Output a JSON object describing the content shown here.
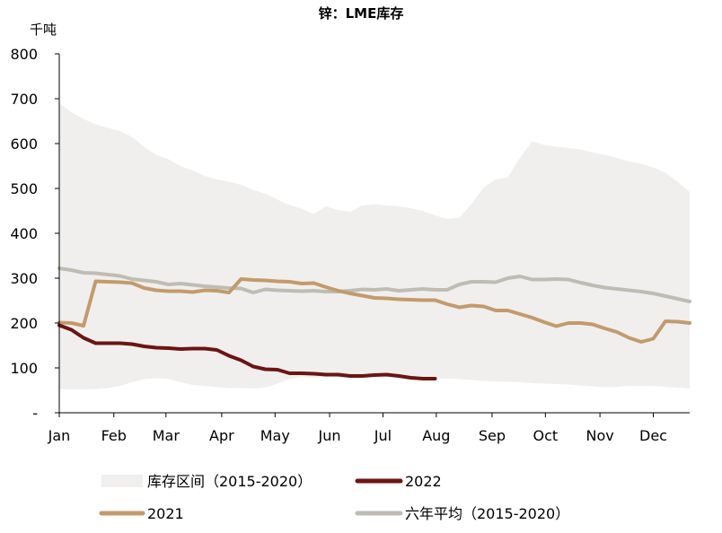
{
  "chart_data": {
    "type": "line",
    "title": "锌：LME库存",
    "ylabel": "千吨",
    "ylim": [
      0,
      800
    ],
    "yticks": [
      {
        "v": 0,
        "label": "-"
      },
      {
        "v": 100,
        "label": "100"
      },
      {
        "v": 200,
        "label": "200"
      },
      {
        "v": 300,
        "label": "300"
      },
      {
        "v": 400,
        "label": "400"
      },
      {
        "v": 500,
        "label": "500"
      },
      {
        "v": 600,
        "label": "600"
      },
      {
        "v": 700,
        "label": "700"
      },
      {
        "v": 800,
        "label": "800"
      }
    ],
    "xlim": [
      1,
      53
    ],
    "xticks": [
      {
        "w": 1,
        "label": "Jan"
      },
      {
        "w": 5.5,
        "label": "Feb"
      },
      {
        "w": 9.8,
        "label": "Mar"
      },
      {
        "w": 14.4,
        "label": "Apr"
      },
      {
        "w": 18.8,
        "label": "May"
      },
      {
        "w": 23.3,
        "label": "Jun"
      },
      {
        "w": 27.7,
        "label": "Jul"
      },
      {
        "w": 32.1,
        "label": "Aug"
      },
      {
        "w": 36.7,
        "label": "Sep"
      },
      {
        "w": 41.1,
        "label": "Oct"
      },
      {
        "w": 45.6,
        "label": "Nov"
      },
      {
        "w": 50.0,
        "label": "Dec"
      }
    ],
    "range": {
      "name": "库存区间（2015-2020）",
      "color": "#f0efed",
      "upper": [
        [
          1,
          690
        ],
        [
          2,
          670
        ],
        [
          3,
          655
        ],
        [
          4,
          643
        ],
        [
          5,
          635
        ],
        [
          6,
          628
        ],
        [
          7,
          615
        ],
        [
          8,
          593
        ],
        [
          9,
          575
        ],
        [
          10,
          565
        ],
        [
          11,
          550
        ],
        [
          12,
          540
        ],
        [
          13,
          528
        ],
        [
          14,
          520
        ],
        [
          15,
          515
        ],
        [
          16,
          508
        ],
        [
          17,
          497
        ],
        [
          18,
          488
        ],
        [
          19,
          475
        ],
        [
          20,
          463
        ],
        [
          21,
          455
        ],
        [
          22,
          443
        ],
        [
          23,
          460
        ],
        [
          24,
          452
        ],
        [
          25,
          448
        ],
        [
          26,
          462
        ],
        [
          27,
          465
        ],
        [
          28,
          462
        ],
        [
          29,
          460
        ],
        [
          30,
          456
        ],
        [
          31,
          450
        ],
        [
          32,
          440
        ],
        [
          33,
          432
        ],
        [
          34,
          435
        ],
        [
          35,
          465
        ],
        [
          36,
          502
        ],
        [
          37,
          520
        ],
        [
          38,
          525
        ],
        [
          39,
          568
        ],
        [
          40,
          605
        ],
        [
          41,
          597
        ],
        [
          42,
          593
        ],
        [
          43,
          590
        ],
        [
          44,
          587
        ],
        [
          45,
          580
        ],
        [
          46,
          575
        ],
        [
          47,
          568
        ],
        [
          48,
          560
        ],
        [
          49,
          555
        ],
        [
          50,
          547
        ],
        [
          51,
          535
        ],
        [
          52,
          515
        ],
        [
          53,
          492
        ]
      ],
      "lower": [
        [
          1,
          53
        ],
        [
          2,
          52
        ],
        [
          3,
          52
        ],
        [
          4,
          53
        ],
        [
          5,
          55
        ],
        [
          6,
          60
        ],
        [
          7,
          68
        ],
        [
          8,
          75
        ],
        [
          9,
          77
        ],
        [
          10,
          75
        ],
        [
          11,
          68
        ],
        [
          12,
          62
        ],
        [
          13,
          60
        ],
        [
          14,
          57
        ],
        [
          15,
          55
        ],
        [
          16,
          55
        ],
        [
          17,
          54
        ],
        [
          18,
          56
        ],
        [
          19,
          65
        ],
        [
          20,
          75
        ],
        [
          21,
          80
        ],
        [
          22,
          78
        ],
        [
          23,
          80
        ],
        [
          24,
          78
        ],
        [
          25,
          78
        ],
        [
          26,
          80
        ],
        [
          27,
          82
        ],
        [
          28,
          83
        ],
        [
          29,
          82
        ],
        [
          30,
          80
        ],
        [
          31,
          78
        ],
        [
          32,
          77
        ],
        [
          33,
          76
        ],
        [
          34,
          75
        ],
        [
          35,
          73
        ],
        [
          36,
          71
        ],
        [
          37,
          70
        ],
        [
          38,
          69
        ],
        [
          39,
          68
        ],
        [
          40,
          66
        ],
        [
          41,
          65
        ],
        [
          42,
          64
        ],
        [
          43,
          63
        ],
        [
          44,
          61
        ],
        [
          45,
          59
        ],
        [
          46,
          57
        ],
        [
          47,
          58
        ],
        [
          48,
          60
        ],
        [
          49,
          60
        ],
        [
          50,
          60
        ],
        [
          51,
          58
        ],
        [
          52,
          56
        ],
        [
          53,
          54
        ]
      ]
    },
    "series": [
      {
        "name": "2022",
        "color": "#6b1512",
        "width": 4,
        "points": [
          [
            1,
            195
          ],
          [
            2,
            185
          ],
          [
            3,
            167
          ],
          [
            4,
            155
          ],
          [
            5,
            155
          ],
          [
            6,
            155
          ],
          [
            7,
            153
          ],
          [
            8,
            148
          ],
          [
            9,
            145
          ],
          [
            10,
            144
          ],
          [
            11,
            142
          ],
          [
            12,
            143
          ],
          [
            13,
            143
          ],
          [
            14,
            140
          ],
          [
            15,
            127
          ],
          [
            16,
            117
          ],
          [
            17,
            103
          ],
          [
            18,
            97
          ],
          [
            19,
            96
          ],
          [
            20,
            88
          ],
          [
            21,
            88
          ],
          [
            22,
            87
          ],
          [
            23,
            85
          ],
          [
            24,
            85
          ],
          [
            25,
            82
          ],
          [
            26,
            82
          ],
          [
            27,
            84
          ],
          [
            28,
            85
          ],
          [
            29,
            82
          ],
          [
            30,
            78
          ],
          [
            31,
            76
          ],
          [
            32,
            76
          ]
        ]
      },
      {
        "name": "2021",
        "color": "#c49a6c",
        "width": 4,
        "points": [
          [
            1,
            201
          ],
          [
            2,
            200
          ],
          [
            3,
            194
          ],
          [
            4,
            293
          ],
          [
            5,
            292
          ],
          [
            6,
            291
          ],
          [
            7,
            289
          ],
          [
            8,
            278
          ],
          [
            9,
            273
          ],
          [
            10,
            271
          ],
          [
            11,
            271
          ],
          [
            12,
            269
          ],
          [
            13,
            273
          ],
          [
            14,
            272
          ],
          [
            15,
            268
          ],
          [
            16,
            298
          ],
          [
            17,
            296
          ],
          [
            18,
            295
          ],
          [
            19,
            293
          ],
          [
            20,
            292
          ],
          [
            21,
            288
          ],
          [
            22,
            289
          ],
          [
            23,
            280
          ],
          [
            24,
            272
          ],
          [
            25,
            266
          ],
          [
            26,
            261
          ],
          [
            27,
            256
          ],
          [
            28,
            255
          ],
          [
            29,
            253
          ],
          [
            30,
            252
          ],
          [
            31,
            251
          ],
          [
            32,
            251
          ],
          [
            33,
            242
          ],
          [
            34,
            235
          ],
          [
            35,
            239
          ],
          [
            36,
            237
          ],
          [
            37,
            228
          ],
          [
            38,
            228
          ],
          [
            39,
            220
          ],
          [
            40,
            212
          ],
          [
            41,
            202
          ],
          [
            42,
            193
          ],
          [
            43,
            200
          ],
          [
            44,
            200
          ],
          [
            45,
            197
          ],
          [
            46,
            188
          ],
          [
            47,
            180
          ],
          [
            48,
            167
          ],
          [
            49,
            158
          ],
          [
            50,
            165
          ],
          [
            51,
            204
          ],
          [
            52,
            203
          ],
          [
            53,
            200
          ]
        ]
      },
      {
        "name": "六年平均（2015-2020）",
        "color": "#bfbdb3",
        "width": 4,
        "points": [
          [
            1,
            322
          ],
          [
            2,
            318
          ],
          [
            3,
            312
          ],
          [
            4,
            311
          ],
          [
            5,
            308
          ],
          [
            6,
            305
          ],
          [
            7,
            298
          ],
          [
            8,
            295
          ],
          [
            9,
            292
          ],
          [
            10,
            286
          ],
          [
            11,
            288
          ],
          [
            12,
            285
          ],
          [
            13,
            282
          ],
          [
            14,
            280
          ],
          [
            15,
            278
          ],
          [
            16,
            277
          ],
          [
            17,
            268
          ],
          [
            18,
            275
          ],
          [
            19,
            273
          ],
          [
            20,
            272
          ],
          [
            21,
            271
          ],
          [
            22,
            272
          ],
          [
            23,
            270
          ],
          [
            24,
            270
          ],
          [
            25,
            272
          ],
          [
            26,
            275
          ],
          [
            27,
            274
          ],
          [
            28,
            276
          ],
          [
            29,
            272
          ],
          [
            30,
            274
          ],
          [
            31,
            276
          ],
          [
            32,
            274
          ],
          [
            33,
            274
          ],
          [
            34,
            286
          ],
          [
            35,
            292
          ],
          [
            36,
            292
          ],
          [
            37,
            291
          ],
          [
            38,
            300
          ],
          [
            39,
            304
          ],
          [
            40,
            297
          ],
          [
            41,
            297
          ],
          [
            42,
            298
          ],
          [
            43,
            297
          ],
          [
            44,
            290
          ],
          [
            45,
            284
          ],
          [
            46,
            279
          ],
          [
            47,
            276
          ],
          [
            48,
            273
          ],
          [
            49,
            270
          ],
          [
            50,
            266
          ],
          [
            51,
            260
          ],
          [
            52,
            254
          ],
          [
            53,
            248
          ]
        ]
      }
    ],
    "legend": [
      {
        "label": "库存区间（2015-2020）",
        "kind": "area",
        "color": "#f0efed"
      },
      {
        "label": "2022",
        "kind": "line",
        "color": "#6b1512"
      },
      {
        "label": "2021",
        "kind": "line",
        "color": "#c49a6c"
      },
      {
        "label": "六年平均（2015-2020）",
        "kind": "line",
        "color": "#bfbdb3"
      }
    ]
  }
}
